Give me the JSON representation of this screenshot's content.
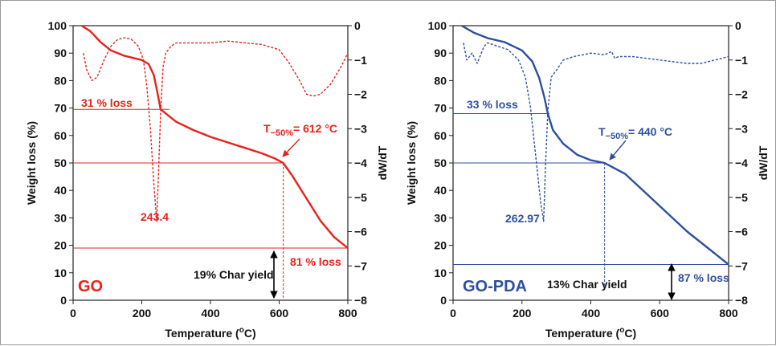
{
  "chart_data": [
    {
      "type": "line",
      "panel_label": "GO",
      "color": "#e8211b",
      "xlabel": "Temperature (°C)",
      "ylabel": "Weight loss (%)",
      "y2label": "dW/dT",
      "xlim": [
        0,
        800
      ],
      "ylim": [
        0,
        100
      ],
      "y2lim": [
        -8,
        0
      ],
      "xticks": [
        "0",
        "200",
        "400",
        "600",
        "800"
      ],
      "yticks": [
        "0",
        "10",
        "20",
        "30",
        "40",
        "50",
        "60",
        "70",
        "80",
        "90",
        "100"
      ],
      "y2ticks": [
        "0",
        "−1",
        "−2",
        "−3",
        "−4",
        "−5",
        "−6",
        "−7",
        "−8"
      ],
      "series": [
        {
          "axis": "left",
          "style": "solid",
          "x": [
            25,
            50,
            80,
            110,
            150,
            200,
            220,
            235,
            245,
            255,
            300,
            350,
            400,
            450,
            500,
            550,
            590,
            612,
            640,
            680,
            720,
            760,
            800
          ],
          "y": [
            100,
            98,
            94,
            91,
            89,
            87.5,
            86,
            82,
            76,
            69.5,
            65,
            62,
            59.5,
            57.5,
            55.5,
            53.5,
            51.5,
            50,
            45,
            37,
            29,
            23,
            19
          ]
        },
        {
          "axis": "right",
          "style": "dashed",
          "x": [
            30,
            40,
            55,
            70,
            90,
            110,
            130,
            150,
            170,
            190,
            205,
            215,
            225,
            235,
            243.4,
            248,
            255,
            262,
            270,
            285,
            300,
            350,
            400,
            450,
            500,
            550,
            600,
            630,
            660,
            680,
            700,
            720,
            750,
            780,
            800
          ],
          "y": [
            -0.8,
            -1.3,
            -1.6,
            -1.5,
            -1.0,
            -0.6,
            -0.4,
            -0.35,
            -0.4,
            -0.6,
            -1.0,
            -1.8,
            -3.0,
            -4.6,
            -5.7,
            -4.5,
            -2.5,
            -1.2,
            -0.8,
            -0.6,
            -0.5,
            -0.5,
            -0.5,
            -0.45,
            -0.5,
            -0.55,
            -0.7,
            -1.1,
            -1.6,
            -2.0,
            -2.05,
            -2.0,
            -1.7,
            -1.2,
            -0.8
          ]
        }
      ],
      "annotations": {
        "loss1": "31 % loss",
        "loss2": "81 % loss",
        "peak": "243.4",
        "t50_prefix": "T",
        "t50_sub": "−50%",
        "t50_suffix": "= 612 °C",
        "char": "19% Char yield"
      },
      "reference_lines": {
        "loss1_y": 69.5,
        "t50_y": 50,
        "char_y": 19,
        "t50_x": 612
      }
    },
    {
      "type": "line",
      "panel_label": "GO-PDA",
      "color": "#2e4fa0",
      "xlabel": "Temperature (°C)",
      "ylabel": "Weight loss (%)",
      "y2label": "dW/dT",
      "xlim": [
        0,
        800
      ],
      "ylim": [
        0,
        100
      ],
      "y2lim": [
        -8,
        0
      ],
      "xticks": [
        "0",
        "200",
        "400",
        "600",
        "800"
      ],
      "yticks": [
        "0",
        "10",
        "20",
        "30",
        "40",
        "50",
        "60",
        "70",
        "80",
        "90",
        "100"
      ],
      "y2ticks": [
        "0",
        "−1",
        "−2",
        "−3",
        "−4",
        "−5",
        "−6",
        "−7",
        "−8"
      ],
      "series": [
        {
          "axis": "left",
          "style": "solid",
          "x": [
            25,
            60,
            100,
            150,
            200,
            230,
            250,
            265,
            275,
            290,
            320,
            360,
            400,
            440,
            500,
            560,
            620,
            680,
            740,
            800
          ],
          "y": [
            100,
            97.5,
            95.5,
            94,
            91,
            87,
            81,
            74,
            68,
            62,
            57,
            53,
            51,
            50,
            46,
            39,
            32,
            25,
            19,
            13
          ]
        },
        {
          "axis": "right",
          "style": "dashed",
          "x": [
            30,
            40,
            55,
            70,
            90,
            100,
            130,
            160,
            190,
            210,
            225,
            240,
            255,
            262.97,
            268,
            275,
            285,
            300,
            320,
            350,
            400,
            440,
            460,
            470,
            480,
            520,
            560,
            600,
            640,
            680,
            720,
            760,
            800
          ],
          "y": [
            -0.5,
            -1.0,
            -0.8,
            -1.1,
            -0.6,
            -0.5,
            -0.6,
            -0.7,
            -1.0,
            -1.5,
            -2.4,
            -3.8,
            -5.2,
            -5.7,
            -4.2,
            -2.5,
            -1.5,
            -1.3,
            -1.0,
            -0.9,
            -0.8,
            -0.85,
            -0.75,
            -0.95,
            -0.9,
            -0.9,
            -0.95,
            -1.0,
            -1.05,
            -1.1,
            -1.1,
            -1.0,
            -0.9
          ]
        }
      ],
      "annotations": {
        "loss1": "33 % loss",
        "loss2": "87 % loss",
        "peak": "262.97",
        "t50_prefix": "T",
        "t50_sub": "−50%",
        "t50_suffix": "= 440 °C",
        "char": "13% Char yield"
      },
      "reference_lines": {
        "loss1_y": 68,
        "t50_y": 50,
        "char_y": 13,
        "t50_x": 440
      }
    }
  ]
}
